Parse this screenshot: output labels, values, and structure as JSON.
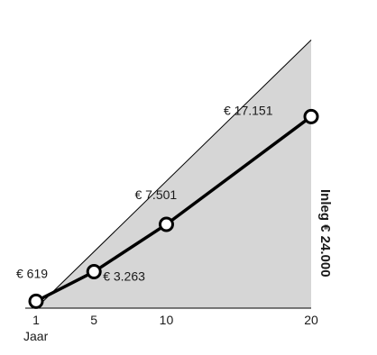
{
  "chart_data": {
    "type": "line",
    "xlabel": "Jaar",
    "x": [
      1,
      5,
      10,
      20
    ],
    "xticks": [
      "1",
      "5",
      "10",
      "20"
    ],
    "xlim": [
      1,
      20
    ],
    "ylim": [
      0,
      25000
    ],
    "grid": false,
    "series": [
      {
        "values": [
          619,
          3263,
          7501,
          17151
        ],
        "labels": [
          "€ 619",
          "€ 3.263",
          "€ 7.501",
          "€ 17.151"
        ]
      }
    ],
    "deposit_line": {
      "x": [
        1,
        20
      ],
      "values": [
        0,
        24000
      ]
    },
    "deposit_label": "Inleg € 24.000",
    "colors": {
      "area": "#d6d6d6",
      "line": "#000000",
      "marker_fill": "#ffffff"
    }
  }
}
